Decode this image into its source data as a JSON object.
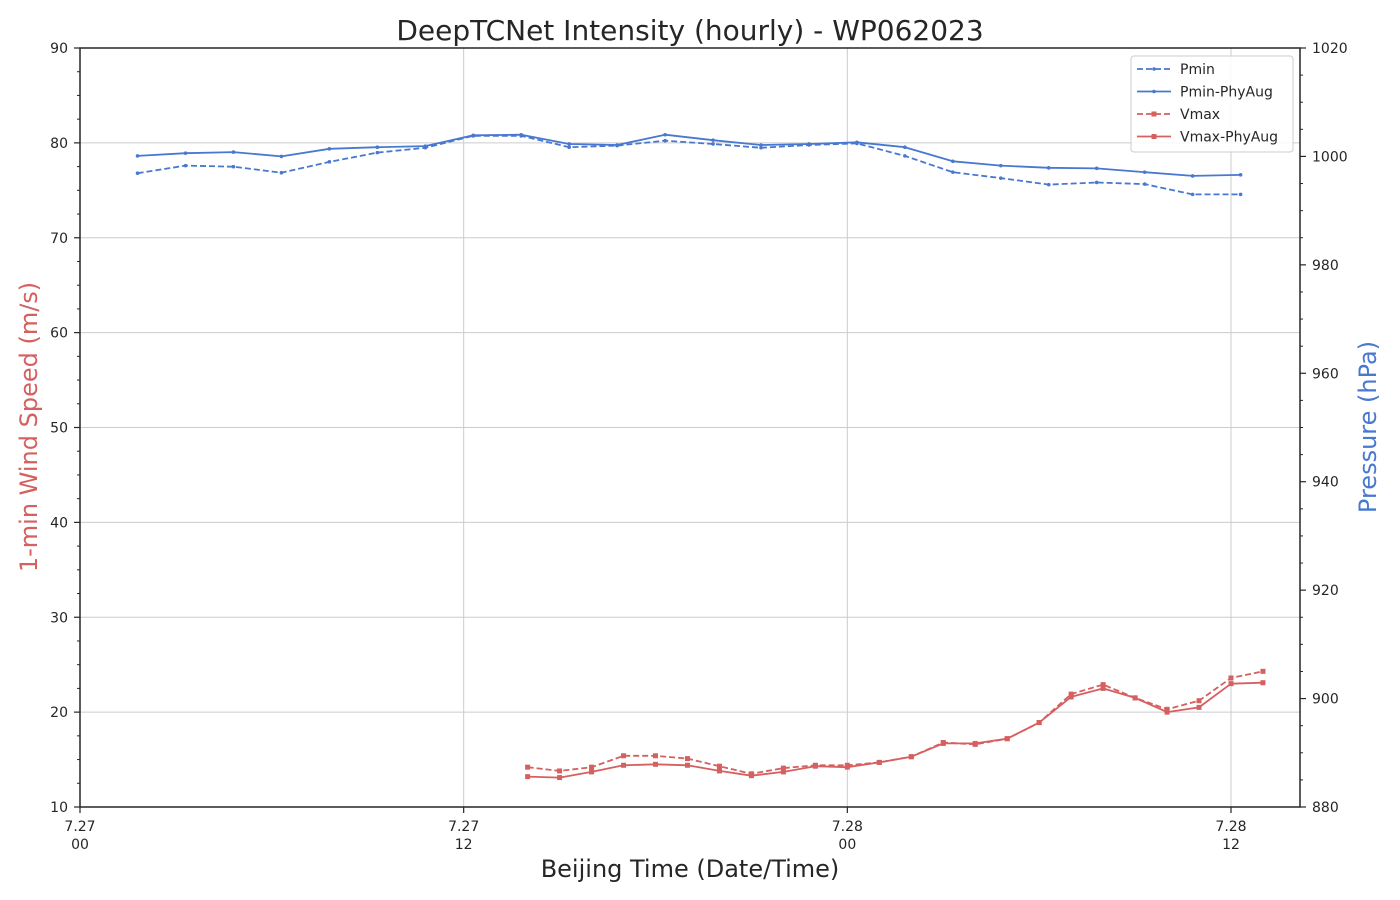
{
  "chart_data": {
    "type": "line",
    "title": "DeepTCNet Intensity (hourly) - WP062023",
    "xlabel": "Beijing Time (Date/Time)",
    "ylabel_left": "1-min Wind Speed (m/s)",
    "ylabel_right": "Pressure (hPa)",
    "x_unit": "hours",
    "xlim": [
      0,
      32
    ],
    "ylim_left": [
      10,
      90
    ],
    "ylim_right": [
      880,
      1020
    ],
    "x_ticks": [
      {
        "x": 0,
        "line1": "7.27",
        "line2": "00"
      },
      {
        "x": 12,
        "line1": "7.27",
        "line2": "12"
      },
      {
        "x": 24,
        "line1": "7.28",
        "line2": "00"
      },
      {
        "x": 36,
        "line1": "7.28",
        "line2": "12"
      }
    ],
    "y_left_ticks": [
      10,
      20,
      30,
      40,
      50,
      60,
      70,
      80,
      90
    ],
    "y_right_ticks": [
      880,
      900,
      920,
      940,
      960,
      980,
      1000,
      1020
    ],
    "grid": true,
    "legend_position": "top-right",
    "colors": {
      "pmin": "#4878d0",
      "vmax": "#d65f5f",
      "grid": "#cccccc",
      "axis": "#262626"
    },
    "series": [
      {
        "name": "Pmin",
        "axis": "right",
        "color": "#4878d0",
        "dash": true,
        "marker": "dot",
        "x": [
          1.8,
          3.3,
          4.8,
          6.3,
          7.8,
          9.3,
          10.8,
          12.3,
          13.8,
          15.3,
          16.8,
          18.3,
          19.8,
          21.3,
          22.8,
          24.3,
          25.8,
          27.3,
          28.8,
          30.3,
          31.8,
          33.3,
          34.8,
          36.3
        ],
        "y": [
          996.9,
          998.3,
          998.1,
          997.0,
          999.0,
          1000.7,
          1001.6,
          1003.8,
          1003.8,
          1001.7,
          1002.0,
          1002.9,
          1002.3,
          1001.6,
          1002.1,
          1002.4,
          1000.1,
          997.1,
          996.0,
          994.8,
          995.2,
          994.9,
          993.0,
          993.0
        ]
      },
      {
        "name": "Pmin-PhyAug",
        "axis": "right",
        "color": "#4878d0",
        "dash": false,
        "marker": "dot",
        "x": [
          1.8,
          3.3,
          4.8,
          6.3,
          7.8,
          9.3,
          10.8,
          12.3,
          13.8,
          15.3,
          16.8,
          18.3,
          19.8,
          21.3,
          22.8,
          24.3,
          25.8,
          27.3,
          28.8,
          30.3,
          31.8,
          33.3,
          34.8,
          36.3
        ],
        "y": [
          1000.1,
          1000.6,
          1000.8,
          1000.0,
          1001.4,
          1001.7,
          1001.9,
          1003.9,
          1004.0,
          1002.3,
          1002.1,
          1004.0,
          1003.0,
          1002.1,
          1002.3,
          1002.6,
          1001.7,
          999.1,
          998.3,
          997.9,
          997.8,
          997.1,
          996.4,
          996.6
        ]
      },
      {
        "name": "Vmax",
        "axis": "left",
        "color": "#d65f5f",
        "dash": true,
        "marker": "square",
        "x": [
          14.0,
          15.0,
          16.0,
          17.0,
          18.0,
          19.0,
          20.0,
          21.0,
          22.0,
          23.0,
          24.0,
          25.0,
          26.0,
          27.0,
          28.0,
          29.0,
          30.0,
          31.0,
          32.0,
          33.0,
          34.0,
          35.0,
          36.0,
          37.0
        ],
        "y": [
          14.2,
          13.8,
          14.2,
          15.4,
          15.4,
          15.1,
          14.3,
          13.5,
          14.1,
          14.4,
          14.4,
          14.7,
          15.3,
          16.8,
          16.6,
          17.2,
          18.9,
          21.9,
          22.9,
          21.5,
          20.3,
          21.2,
          23.6,
          24.3
        ]
      },
      {
        "name": "Vmax-PhyAug",
        "axis": "left",
        "color": "#d65f5f",
        "dash": false,
        "marker": "square",
        "x": [
          14.0,
          15.0,
          16.0,
          17.0,
          18.0,
          19.0,
          20.0,
          21.0,
          22.0,
          23.0,
          24.0,
          25.0,
          26.0,
          27.0,
          28.0,
          29.0,
          30.0,
          31.0,
          32.0,
          33.0,
          34.0,
          35.0,
          36.0,
          37.0
        ],
        "y": [
          13.2,
          13.1,
          13.7,
          14.4,
          14.5,
          14.4,
          13.8,
          13.3,
          13.7,
          14.3,
          14.2,
          14.7,
          15.3,
          16.7,
          16.7,
          17.2,
          18.9,
          21.6,
          22.5,
          21.5,
          20.0,
          20.5,
          23.0,
          23.1
        ]
      }
    ]
  }
}
